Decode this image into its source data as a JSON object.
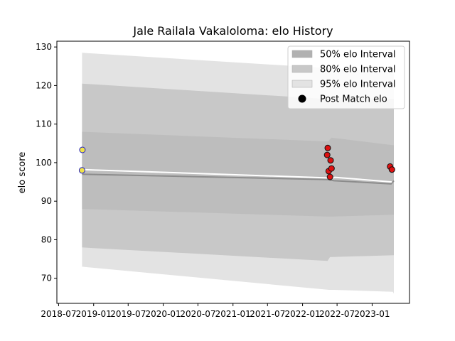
{
  "chart_data": {
    "type": "line",
    "title": "Jale Railala Vakaloloma: elo History",
    "xlabel": "",
    "ylabel": "elo score",
    "xlim": [
      "2018-06-22",
      "2023-07-16"
    ],
    "ylim": [
      63.5,
      131.5
    ],
    "x_ticks": [
      "2018-07",
      "2019-01",
      "2019-07",
      "2020-01",
      "2020-07",
      "2021-01",
      "2021-07",
      "2022-01",
      "2022-07",
      "2023-01"
    ],
    "y_ticks": [
      70,
      80,
      90,
      100,
      110,
      120,
      130
    ],
    "grid": false,
    "legend_position": "top-right",
    "legend": [
      {
        "label": "50% elo Interval",
        "color": "#b1b1b1"
      },
      {
        "label": "80% elo Interval",
        "color": "#c8c8c8"
      },
      {
        "label": "95% elo Interval",
        "color": "#e3e3e3"
      },
      {
        "label": "Post Match elo",
        "color": "#000000"
      }
    ],
    "bands": [
      {
        "name": "95% elo Interval",
        "color": "#e3e3e3",
        "points": [
          {
            "x": "2018-11-01",
            "low": 73.0,
            "high": 128.5
          },
          {
            "x": "2022-05-20",
            "low": 67.0,
            "high": 124.5
          },
          {
            "x": "2022-06-15",
            "low": 67.0,
            "high": 124.5
          },
          {
            "x": "2023-04-20",
            "low": 66.5,
            "high": 123.5
          },
          {
            "x": "2023-04-25",
            "low": 66.0,
            "high": 123.0
          }
        ]
      },
      {
        "name": "80% elo Interval",
        "color": "#c8c8c8",
        "points": [
          {
            "x": "2018-11-01",
            "low": 78.0,
            "high": 120.5
          },
          {
            "x": "2022-05-12",
            "low": 74.5,
            "high": 116.5
          },
          {
            "x": "2022-05-25",
            "low": 75.5,
            "high": 117.0
          },
          {
            "x": "2023-04-25",
            "low": 76.0,
            "high": 116.5
          }
        ]
      },
      {
        "name": "50% elo Interval",
        "color": "#bdbdbd",
        "points": [
          {
            "x": "2018-11-01",
            "low": 88.0,
            "high": 108.0
          },
          {
            "x": "2022-05-15",
            "low": 86.0,
            "high": 105.5
          },
          {
            "x": "2022-06-01",
            "low": 86.0,
            "high": 106.5
          },
          {
            "x": "2023-04-25",
            "low": 86.5,
            "high": 104.5
          }
        ]
      }
    ],
    "series": [
      {
        "role": "mean",
        "color": "#8c8c8c",
        "points": [
          {
            "x": "2018-11-01",
            "y": 97.0
          },
          {
            "x": "2022-05-15",
            "y": 95.6
          },
          {
            "x": "2022-06-15",
            "y": 95.3
          },
          {
            "x": "2023-04-10",
            "y": 94.5
          },
          {
            "x": "2023-04-25",
            "y": 95.3
          }
        ]
      },
      {
        "role": "elo-line",
        "color": "#ffffff",
        "points": [
          {
            "x": "2018-11-01",
            "y": 98.2
          },
          {
            "x": "2022-06-05",
            "y": 96.0
          },
          {
            "x": "2022-06-20",
            "y": 96.2
          },
          {
            "x": "2023-04-15",
            "y": 95.0
          }
        ]
      }
    ],
    "post_match": [
      {
        "x": "2018-11-01",
        "y": 98.0,
        "fill": "#f1e34a",
        "edge": "#1e1ec8"
      },
      {
        "x": "2018-11-03",
        "y": 103.3,
        "fill": "#f1e34a",
        "edge": "#1e1ec8"
      },
      {
        "x": "2022-05-10",
        "y": 102.0,
        "fill": "#dd1111",
        "edge": "#111111"
      },
      {
        "x": "2022-05-13",
        "y": 103.8,
        "fill": "#dd1111",
        "edge": "#111111"
      },
      {
        "x": "2022-05-18",
        "y": 97.8,
        "fill": "#dd1111",
        "edge": "#111111"
      },
      {
        "x": "2022-05-25",
        "y": 96.3,
        "fill": "#dd1111",
        "edge": "#111111"
      },
      {
        "x": "2022-05-28",
        "y": 100.6,
        "fill": "#dd1111",
        "edge": "#111111"
      },
      {
        "x": "2022-06-02",
        "y": 98.5,
        "fill": "#dd1111",
        "edge": "#111111"
      },
      {
        "x": "2023-04-05",
        "y": 99.0,
        "fill": "#dd1111",
        "edge": "#111111"
      },
      {
        "x": "2023-04-15",
        "y": 98.2,
        "fill": "#dd1111",
        "edge": "#111111"
      }
    ]
  }
}
